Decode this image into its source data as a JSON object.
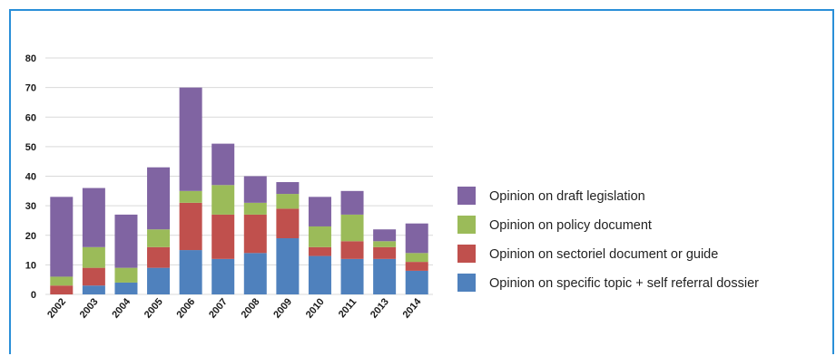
{
  "colors": {
    "draft": "#8064a2",
    "policy": "#9bbb59",
    "sectoriel": "#c0504d",
    "specific": "#4f81bd",
    "grid": "#d9d9d9",
    "frame": "#2a8fd8"
  },
  "chart_data": {
    "type": "bar",
    "stacked": true,
    "title": "",
    "xlabel": "",
    "ylabel": "",
    "ylim": [
      0,
      80
    ],
    "yticks": [
      0,
      10,
      20,
      30,
      40,
      50,
      60,
      70,
      80
    ],
    "grid": true,
    "legend_position": "right",
    "categories": [
      "2002",
      "2003",
      "2004",
      "2005",
      "2006",
      "2007",
      "2008",
      "2009",
      "2010",
      "2011",
      "2013",
      "2014"
    ],
    "series": [
      {
        "name": "Opinion on specific topic + self referral dossier",
        "color": "#4f81bd",
        "values": [
          0,
          3,
          4,
          9,
          15,
          12,
          14,
          19,
          13,
          12,
          12,
          8
        ]
      },
      {
        "name": "Opinion on sectoriel document or guide",
        "color": "#c0504d",
        "values": [
          3,
          6,
          0,
          7,
          16,
          15,
          13,
          10,
          3,
          6,
          4,
          3
        ]
      },
      {
        "name": "Opinion on policy document",
        "color": "#9bbb59",
        "values": [
          3,
          7,
          5,
          6,
          4,
          10,
          4,
          5,
          7,
          9,
          2,
          3
        ]
      },
      {
        "name": "Opinion on draft legislation",
        "color": "#8064a2",
        "values": [
          27,
          20,
          18,
          21,
          35,
          14,
          9,
          4,
          10,
          8,
          4,
          10
        ]
      }
    ],
    "legend_order": [
      3,
      2,
      1,
      0
    ]
  }
}
